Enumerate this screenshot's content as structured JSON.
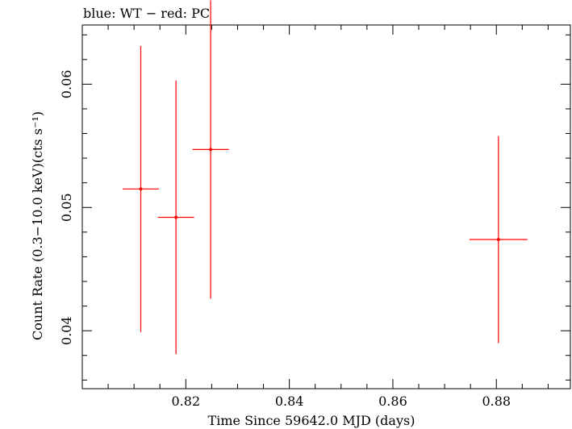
{
  "chart_data": {
    "type": "scatter",
    "title": "blue: WT − red: PC",
    "xlabel": "Time Since 59642.0 MJD (days)",
    "ylabel": "Count Rate (0.3−10.0 keV)(cts s⁻¹)",
    "xlim": [
      0.8,
      0.8943
    ],
    "ylim": [
      0.0353,
      0.0648
    ],
    "x_ticks": [
      "0.82",
      "0.84",
      "0.86",
      "0.88"
    ],
    "x_tick_values": [
      0.82,
      0.84,
      0.86,
      0.88
    ],
    "y_ticks": [
      "0.04",
      "0.05",
      "0.06"
    ],
    "y_tick_values": [
      0.04,
      0.05,
      0.06
    ],
    "grid": false,
    "series": [
      {
        "color": "#ff0000",
        "points": [
          {
            "x": 0.8113,
            "y": 0.0515,
            "xerr": 0.0035,
            "yerr": 0.0116
          },
          {
            "x": 0.8181,
            "y": 0.0492,
            "xerr": 0.0035,
            "yerr": 0.0111
          },
          {
            "x": 0.8248,
            "y": 0.0547,
            "xerr": 0.0035,
            "yerr": 0.0121
          },
          {
            "x": 0.8804,
            "y": 0.0474,
            "xerr": 0.0056,
            "yerr": 0.0084
          }
        ]
      }
    ]
  }
}
